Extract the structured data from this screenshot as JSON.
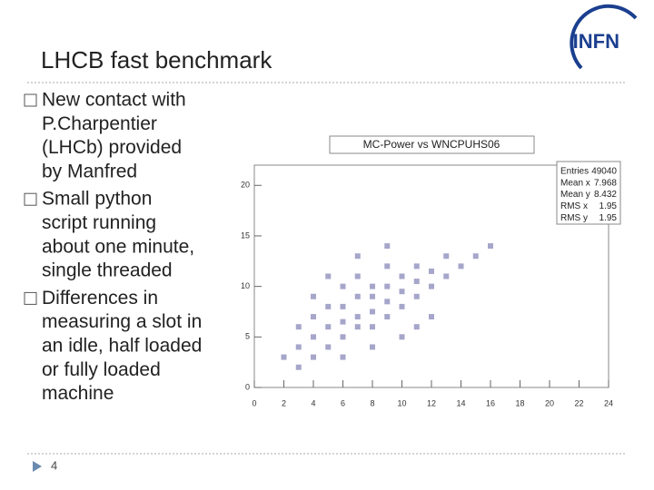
{
  "slide": {
    "title": "LHCB fast benchmark",
    "logo": "INFN",
    "page_number": "4",
    "bullets": [
      [
        "New contact with",
        "P.Charpentier",
        "(LHCb) provided",
        "by Manfred"
      ],
      [
        "Small python",
        "script running",
        "about one minute,",
        "single threaded"
      ],
      [
        "Differences in",
        "measuring a slot in",
        "an idle, half loaded",
        "or fully loaded",
        "machine"
      ]
    ]
  },
  "chart_data": {
    "type": "scatter",
    "title": "MC-Power vs WNCPUHS06",
    "color": "#6a6aa8",
    "xlim": [
      0,
      24
    ],
    "ylim": [
      0,
      22
    ],
    "xticks": [
      0,
      2,
      4,
      6,
      8,
      10,
      12,
      14,
      16,
      18,
      20,
      22,
      24
    ],
    "yticks": [
      0,
      5,
      10,
      15,
      20
    ],
    "grid": false,
    "x": [
      2,
      3,
      3,
      4,
      4,
      4,
      5,
      5,
      5,
      6,
      6,
      6,
      6,
      7,
      7,
      7,
      7,
      8,
      8,
      8,
      8,
      9,
      9,
      9,
      9,
      10,
      10,
      10,
      11,
      11,
      11,
      12,
      12,
      13,
      13,
      14,
      15,
      6,
      8,
      10,
      5,
      7,
      12,
      16,
      4,
      3,
      9,
      11
    ],
    "values": [
      3,
      4,
      6,
      3,
      5,
      7,
      4,
      6,
      8,
      5,
      6.5,
      8,
      10,
      6,
      7,
      9,
      11,
      6,
      7.5,
      9,
      10,
      7,
      8.5,
      10,
      12,
      8,
      9.5,
      11,
      9,
      10.5,
      12,
      10,
      11.5,
      11,
      13,
      12,
      13,
      3,
      4,
      5,
      11,
      13,
      7,
      14,
      9,
      2,
      14,
      6
    ],
    "stats": [
      {
        "label": "Entries",
        "value": 49040
      },
      {
        "label": "Mean x",
        "value": 7.968
      },
      {
        "label": "Mean y",
        "value": 8.432
      },
      {
        "label": "RMS x",
        "value": 1.95
      },
      {
        "label": "RMS y",
        "value": 1.95
      }
    ]
  }
}
